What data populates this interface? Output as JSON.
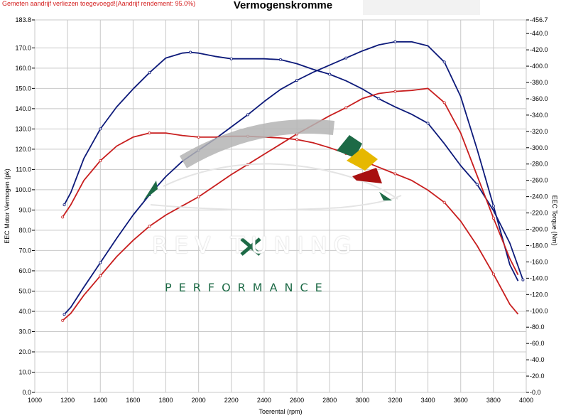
{
  "header": {
    "warning": "Gemeten aandrijf verliezen toegevoegd!(Aandrijf rendement: 95.0%)",
    "title": "Vermogenskromme"
  },
  "logo": {
    "brand": "REV TUNING",
    "tagline": "PERFORMANCE"
  },
  "chart_data": {
    "type": "line",
    "title": "Vermogenskromme",
    "xlabel": "Toerental (rpm)",
    "ylabel_left": "EEC Motor Vermogen (pk)",
    "ylabel_right": "EEC Torque (Nm)",
    "xlim": [
      1000,
      4000
    ],
    "ylim_left": [
      0,
      183.8
    ],
    "ylim_right": [
      0,
      456.7
    ],
    "x_ticks": [
      "1000",
      "1200",
      "1400",
      "1600",
      "1800",
      "2000",
      "2200",
      "2400",
      "2600",
      "2800",
      "3000",
      "3200",
      "3400",
      "3600",
      "3800",
      "4000"
    ],
    "left_ticks": [
      "0.0",
      "10.0",
      "20.0",
      "30.0",
      "40.0",
      "50.0",
      "60.0",
      "70.0",
      "80.0",
      "90.0",
      "100.0",
      "110.0",
      "120.0",
      "130.0",
      "140.0",
      "150.0",
      "160.0",
      "170.0",
      "183.8"
    ],
    "left_tick_values": [
      0,
      10,
      20,
      30,
      40,
      50,
      60,
      70,
      80,
      90,
      100,
      110,
      120,
      130,
      140,
      150,
      160,
      170,
      183.8
    ],
    "right_ticks": [
      "0.0",
      "20.0",
      "40.0",
      "60.0",
      "80.0",
      "100.0",
      "120.0",
      "140.0",
      "160.0",
      "180.0",
      "200.0",
      "220.0",
      "240.0",
      "260.0",
      "280.0",
      "300.0",
      "320.0",
      "340.0",
      "360.0",
      "380.0",
      "400.0",
      "420.0",
      "440.0",
      "456.7"
    ],
    "right_tick_values": [
      0,
      20,
      40,
      60,
      80,
      100,
      120,
      140,
      160,
      180,
      200,
      220,
      240,
      260,
      280,
      300,
      320,
      340,
      360,
      380,
      400,
      420,
      440,
      456.7
    ],
    "colors": {
      "tuned": "#0d1a7a",
      "stock": "#c81e1e",
      "grid": "#c8c8c8"
    },
    "series": [
      {
        "axis": "left",
        "color": "#0d1a7a",
        "x": [
          1180,
          1220,
          1300,
          1400,
          1500,
          1600,
          1700,
          1800,
          1900,
          2000,
          2100,
          2200,
          2300,
          2400,
          2500,
          2600,
          2700,
          2800,
          2900,
          3000,
          3100,
          3200,
          3300,
          3400,
          3500,
          3600,
          3700,
          3800,
          3900,
          3950
        ],
        "y": [
          38.5,
          42,
          52,
          64,
          76,
          87.5,
          97.5,
          106.5,
          114,
          119.5,
          125,
          131,
          137,
          143.5,
          149.5,
          154,
          158,
          161.5,
          165,
          168.5,
          171.5,
          173,
          173,
          171,
          163,
          146,
          120,
          92,
          63,
          55
        ]
      },
      {
        "axis": "right",
        "color": "#0d1a7a",
        "x": [
          1180,
          1220,
          1300,
          1400,
          1500,
          1600,
          1700,
          1800,
          1900,
          1950,
          2000,
          2100,
          2200,
          2300,
          2400,
          2500,
          2600,
          2700,
          2800,
          2900,
          3000,
          3100,
          3200,
          3300,
          3400,
          3500,
          3600,
          3700,
          3800,
          3900,
          3980
        ],
        "y": [
          230,
          245,
          287,
          323,
          350,
          372,
          392,
          410,
          416,
          417,
          416,
          412,
          409,
          409,
          409,
          408,
          403,
          396,
          390,
          382,
          372,
          360,
          350,
          341,
          330,
          305,
          278,
          255,
          223,
          183,
          138
        ]
      },
      {
        "axis": "left",
        "color": "#c81e1e",
        "x": [
          1170,
          1220,
          1300,
          1400,
          1500,
          1600,
          1700,
          1800,
          1900,
          2000,
          2100,
          2200,
          2300,
          2400,
          2500,
          2600,
          2700,
          2800,
          2900,
          3000,
          3100,
          3200,
          3300,
          3400,
          3500,
          3600,
          3700,
          3800,
          3900,
          3950
        ],
        "y": [
          35.5,
          39,
          48,
          57.5,
          67,
          75,
          82,
          87.5,
          92,
          96.5,
          102,
          107.5,
          112.5,
          117.5,
          122.5,
          127.5,
          132,
          136.5,
          140.5,
          145,
          147.5,
          148.5,
          149,
          150,
          143,
          128,
          107,
          86,
          66,
          58
        ]
      },
      {
        "axis": "right",
        "color": "#c81e1e",
        "x": [
          1170,
          1220,
          1300,
          1400,
          1500,
          1600,
          1700,
          1800,
          1900,
          2000,
          2100,
          2200,
          2300,
          2400,
          2500,
          2600,
          2700,
          2800,
          2900,
          3000,
          3100,
          3200,
          3300,
          3400,
          3500,
          3600,
          3700,
          3800,
          3900,
          3950
        ],
        "y": [
          215,
          230,
          260,
          284,
          302,
          313,
          318,
          318,
          315,
          313,
          313,
          314,
          314,
          313,
          312,
          310,
          306,
          300,
          293,
          284,
          276,
          268,
          260,
          248,
          233,
          210,
          180,
          145,
          108,
          96
        ]
      }
    ]
  }
}
